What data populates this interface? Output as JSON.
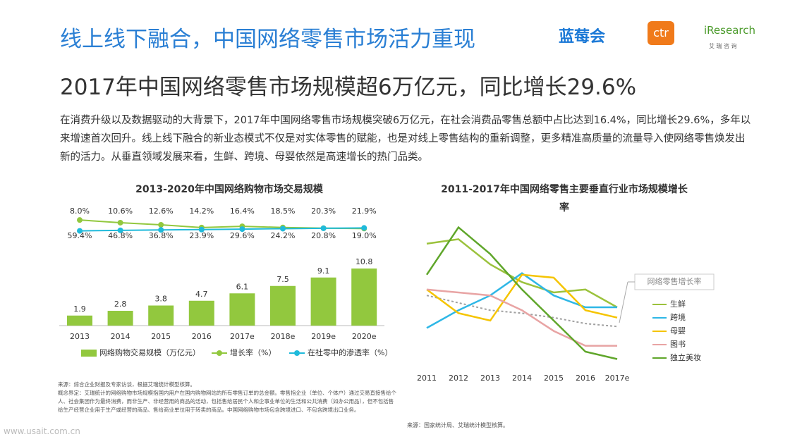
{
  "header": {
    "title": "线上线下融合，中国网络零售市场活力重现",
    "logos": [
      "蓝莓会",
      "ctr",
      "iResearch",
      "艾 瑞 咨 询"
    ]
  },
  "subtitle": "2017年中国网络零售市场规模超6万亿元，同比增长29.6%",
  "paragraph": "在消费升级以及数据驱动的大背景下，2017年中国网络零售市场规模突破6万亿元，在社会消费品零售总额中占比达到16.4%，同比增长29.6%，多年以来增速首次回升。线上线下融合的新业态模式不仅是对实体零售的赋能，也是对线上零售结构的重新调整，更多精准高质量的流量导入使网络零售焕发出新的活力。从垂直领域发展来看，生鲜、跨境、母婴依然是高速增长的热门品类。",
  "chart_data": [
    {
      "type": "bar",
      "title": "2013-2020年中国网络购物市场交易规模",
      "categories": [
        "2013",
        "2014",
        "2015",
        "2016",
        "2017e",
        "2018e",
        "2019e",
        "2020e"
      ],
      "ylim": [
        0,
        12
      ],
      "y2lim": [
        0,
        100
      ],
      "series": [
        {
          "name": "网络购物交易规模（万亿元）",
          "color": "#92c83e",
          "values": [
            1.9,
            2.8,
            3.8,
            4.7,
            6.1,
            7.5,
            9.1,
            10.8
          ]
        },
        {
          "name": "增长率（%）",
          "color": "#92c83e",
          "axis": "y2",
          "values": [
            59.4,
            46.8,
            36.8,
            23.9,
            29.6,
            24.2,
            20.8,
            19.0
          ],
          "value_labels": [
            "59.4%",
            "46.8%",
            "36.8%",
            "23.9%",
            "29.6%",
            "24.2%",
            "20.8%",
            "19.0%"
          ]
        },
        {
          "name": "在社零中的渗透率（%）",
          "color": "#1fbadb",
          "axis": "y2",
          "values": [
            8.0,
            10.6,
            12.6,
            14.2,
            16.4,
            18.5,
            20.3,
            21.9
          ],
          "value_labels": [
            "8.0%",
            "10.6%",
            "12.6%",
            "14.2%",
            "16.4%",
            "18.5%",
            "20.3%",
            "21.9%"
          ]
        }
      ],
      "source": "来源：综合企业财报及专家访谈，根据艾瑞统计模型核算。",
      "note": "概念界定：艾瑞统计的网络购物市场规模指国内用户在国内购物网站的所有零售订单的总金额。零售指企业（单位、个体户）通过交易直接售给个人、社会集团作为最终消费，而非生产、非经营用的商品的活动，包括售给居民个人和企事业单位的生活和公共消费（如办公用品），但不包括售给生产经营企业用于生产或经营的商品、售给商业单位用于转卖的商品。中国网络购物市场包含跨境进口、不包含跨境出口业务。"
    },
    {
      "type": "line",
      "title": "2011-2017年中国网络零售主要垂直行业市场规模增长率",
      "categories": [
        "2011",
        "2012",
        "2013",
        "2014",
        "2015",
        "2016",
        "2017e"
      ],
      "ylim": [
        0,
        100
      ],
      "series": [
        {
          "name": "网络零售增长率",
          "color": "#a0a0a0",
          "dashed": true,
          "values": [
            48,
            43,
            38,
            36,
            33,
            29,
            27
          ]
        },
        {
          "name": "生鲜",
          "color": "#9bc23c",
          "values": [
            83,
            86,
            69,
            57,
            50,
            52,
            40
          ]
        },
        {
          "name": "跨境",
          "color": "#2eb7e6",
          "values": [
            26,
            38,
            48,
            63,
            48,
            40,
            40
          ]
        },
        {
          "name": "母婴",
          "color": "#f5c400",
          "values": [
            52,
            36,
            31,
            62,
            60,
            38,
            33
          ]
        },
        {
          "name": "图书",
          "color": "#e8a4a4",
          "values": [
            52,
            50,
            48,
            38,
            24,
            14,
            14
          ]
        },
        {
          "name": "独立美妆",
          "color": "#5fa62a",
          "values": [
            62,
            94,
            76,
            52,
            31,
            10,
            5
          ]
        }
      ],
      "source": "来源：国家统计局、艾瑞统计模型核算。"
    }
  ],
  "watermark": "www.usait.com.cn"
}
